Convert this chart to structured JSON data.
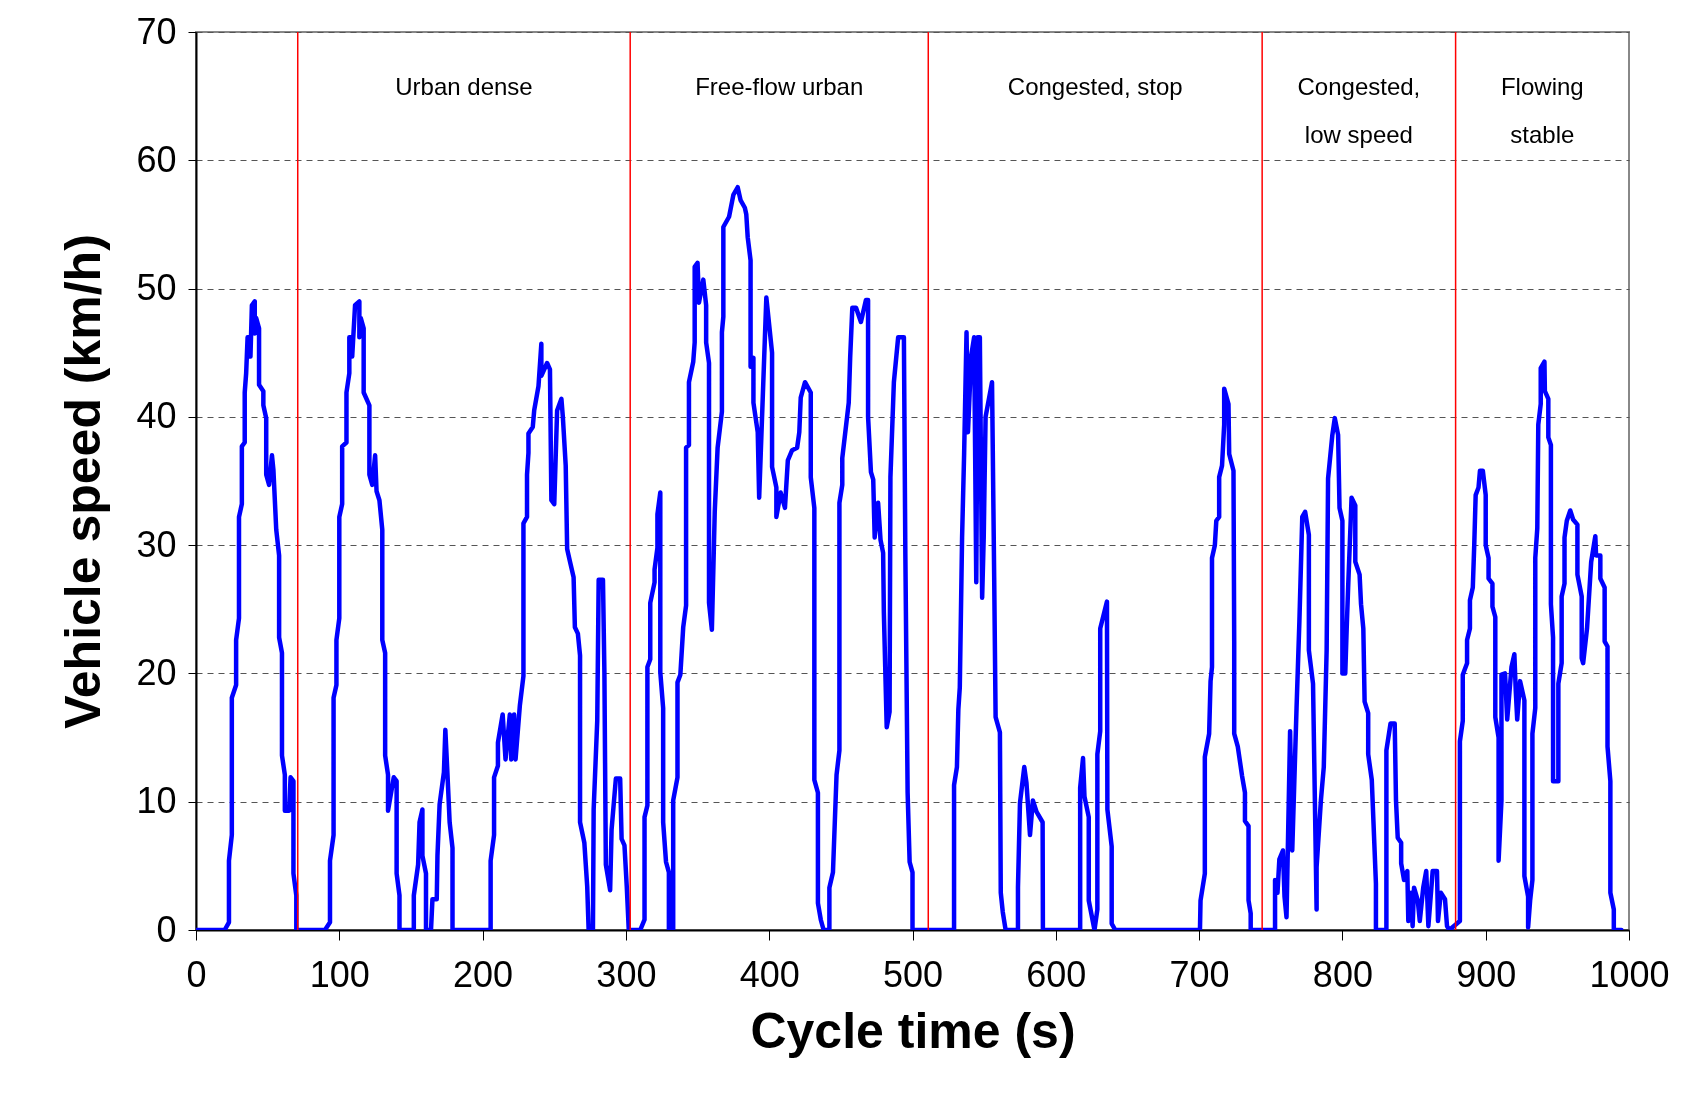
{
  "chart_data": {
    "type": "line",
    "xlabel": "Cycle time (s)",
    "ylabel": "Vehicle speed (km/h)",
    "xlim": [
      0,
      1000
    ],
    "xticks": [
      0,
      100,
      200,
      300,
      400,
      500,
      600,
      700,
      800,
      900,
      1000
    ],
    "ylim": [
      0,
      70
    ],
    "yticks": [
      0,
      10,
      20,
      30,
      40,
      50,
      60,
      70
    ],
    "grid": "y",
    "line_style": "solid",
    "series": [
      {
        "color": "#0000ff",
        "x": [
          0,
          20,
          23,
          23,
          25,
          25,
          28,
          28,
          30,
          30,
          32,
          32,
          34,
          34,
          35,
          36,
          37,
          38,
          39,
          41,
          41,
          42,
          44,
          44,
          47,
          47,
          49,
          49,
          51,
          53,
          54,
          56,
          58,
          58,
          60,
          60,
          62,
          62,
          65,
          66,
          68,
          68,
          70,
          70,
          90,
          93.5,
          93.5,
          96,
          96,
          98,
          98,
          100,
          100,
          102,
          102,
          105,
          105,
          107,
          107,
          109,
          109,
          111,
          114,
          114,
          115,
          117,
          117,
          121,
          121,
          123,
          125,
          126,
          128,
          130,
          130,
          132,
          132,
          134,
          134,
          138,
          140,
          140,
          142,
          142,
          152,
          152,
          155,
          156,
          158,
          158,
          160.5,
          160.5,
          164,
          165,
          168,
          168.5,
          170,
          173,
          174,
          175.5,
          177,
          179,
          179,
          205.6,
          205.6,
          208,
          208,
          210.7,
          210.7,
          214,
          216,
          219,
          220,
          222,
          223,
          226,
          228.5,
          228.5,
          231,
          231,
          232,
          232,
          235,
          236,
          239,
          241,
          241,
          245,
          247,
          248,
          250,
          252,
          255,
          256,
          258,
          259,
          261,
          263.5,
          264.4,
          266.5,
          268,
          268,
          271,
          273,
          274,
          277,
          277.5,
          280,
          281,
          284,
          285,
          286,
          289,
          290,
          293,
          296,
          297,
          299,
          300.6,
          302,
          310,
          313,
          313,
          315,
          315,
          317,
          317,
          320,
          320,
          322,
          322,
          324,
          324,
          326,
          326,
          328,
          330,
          330,
          333,
          333,
          336,
          336,
          338,
          340,
          342,
          342,
          344,
          344,
          347,
          348,
          348,
          350,
          351,
          354,
          356,
          356,
          358,
          358,
          360,
          362,
          364,
          367,
          367,
          368,
          368,
          372,
          375,
          378,
          380,
          383,
          384,
          385,
          387,
          387,
          389,
          389,
          392,
          393,
          398,
          402,
          402,
          405,
          405,
          408,
          411,
          413,
          416,
          419.5,
          421,
          422,
          425,
          429,
          429,
          431.5,
          431.5,
          434,
          434,
          436,
          438,
          442,
          442,
          444.5,
          447,
          449,
          449,
          451,
          451,
          455.5,
          456.5,
          458,
          460.6,
          464,
          467.5,
          469,
          469,
          471,
          472.6,
          473.6,
          476,
          477.7,
          479.5,
          480,
          482,
          484,
          484.6,
          487,
          490,
          494,
          495,
          496.6,
          498,
          500,
          500,
          529,
          529,
          531,
          532,
          533,
          534.6,
          536,
          537.7,
          538.7,
          541,
          543,
          544.5,
          545.5,
          547,
          548.6,
          549.7,
          551,
          555.5,
          557,
          558,
          561,
          561.6,
          563,
          565,
          573.6,
          573.6,
          575,
          578,
          579.5,
          582,
          584,
          586.6,
          590.8,
          591,
          617,
          617,
          619,
          620,
          623,
          623,
          627,
          629,
          629,
          631,
          631,
          635.7,
          636,
          639,
          639,
          641.5,
          700.6,
          701,
          704,
          704,
          707,
          708,
          709,
          709,
          711,
          712,
          714,
          714,
          716,
          717.5,
          717.5,
          720.5,
          721,
          724,
          724.5,
          724.5,
          727,
          730,
          732,
          732,
          734.5,
          734.5,
          736,
          736,
          753,
          753,
          754.7,
          756,
          758.5,
          759.6,
          761,
          763.5,
          765,
          768,
          770,
          772,
          774,
          776.6,
          776.6,
          779.5,
          782,
          782,
          785,
          787,
          789,
          790,
          793,
          794.7,
          797,
          798,
          800,
          800,
          802,
          803,
          804,
          806.4,
          809,
          809,
          812,
          813,
          814.6,
          815.5,
          818,
          818,
          820.5,
          823.4,
          823.4,
          830.7,
          830.7,
          833.6,
          836.5,
          837.4,
          838.6,
          841,
          841,
          843,
          845.3,
          846,
          848,
          849,
          850,
          852.6,
          854,
          856.4,
          858.5,
          860,
          863,
          866,
          866.7,
          868.7,
          871.6,
          873,
          874.6,
          882,
          882,
          884,
          884,
          887,
          887,
          889,
          889,
          891,
          892,
          893,
          895,
          896,
          898,
          900,
          900,
          902,
          902,
          904.7,
          904.7,
          906.7,
          906.7,
          909,
          909,
          911,
          911,
          913.5,
          915,
          918,
          920,
          921,
          922,
          924,
          927,
          927,
          929.6,
          929.6,
          931,
          932.6,
          932.6,
          934.6,
          934.6,
          936,
          936.7,
          938.4,
          938.4,
          941,
          941.3,
          943.7,
          943.7,
          945.5,
          945.5,
          947,
          947,
          950.7,
          950.7,
          953,
          953,
          955,
          955,
          956.6,
          959,
          961,
          964,
          964,
          967,
          967,
          968,
          970.7,
          973.6,
          976.5,
          977,
          980,
          980,
          983,
          983,
          985,
          985,
          987,
          987,
          989.4,
          989.4,
          994.7
        ],
        "values": [
          0,
          0,
          0.6,
          5.4,
          7.4,
          18.1,
          19.1,
          22.6,
          24.3,
          32.2,
          33.2,
          37.7,
          38,
          41.9,
          43.4,
          46.2,
          46.2,
          44.7,
          48.7,
          49,
          46.5,
          47.7,
          46.9,
          42.5,
          42,
          40.9,
          39.9,
          35.5,
          34.7,
          37,
          35.9,
          31.2,
          29.2,
          22.8,
          21.6,
          13.6,
          12.1,
          9.3,
          9.3,
          11.9,
          11.6,
          4.4,
          2.7,
          0,
          0,
          0.6,
          5.4,
          7.4,
          18.1,
          19.1,
          22.6,
          24.3,
          32.2,
          33.2,
          37.7,
          38,
          41.9,
          43.4,
          46.2,
          46.2,
          44.7,
          48.7,
          49,
          46.2,
          47.7,
          46.9,
          41.9,
          40.9,
          35.5,
          34.7,
          37,
          34.2,
          33.5,
          31.2,
          22.6,
          21.6,
          13.6,
          12.1,
          9.3,
          11.9,
          11.6,
          4.4,
          2.7,
          0,
          0,
          2.7,
          5.1,
          8.4,
          9.4,
          5.8,
          4.4,
          0,
          0,
          2.4,
          2.4,
          5.8,
          9.8,
          12.3,
          15.6,
          12.1,
          8.4,
          6.4,
          0,
          0,
          5.4,
          7.4,
          11.9,
          12.8,
          14.6,
          16.8,
          13.3,
          16.8,
          13.3,
          16.8,
          13.3,
          17.5,
          19.8,
          31.7,
          32.2,
          35.5,
          37.2,
          38.7,
          39.2,
          40.5,
          42.4,
          45.7,
          43.2,
          44.2,
          43.7,
          33.5,
          33.2,
          40.5,
          41.4,
          40,
          36.2,
          29.7,
          28.7,
          27.5,
          23.6,
          23.1,
          21.4,
          8.4,
          6.8,
          3.4,
          0,
          0,
          9.4,
          16.3,
          27.3,
          27.3,
          20.1,
          5.1,
          3.1,
          7.8,
          11.8,
          11.8,
          7.1,
          6.6,
          3.4,
          0,
          0,
          0.8,
          8.8,
          9.7,
          20.5,
          21.1,
          25.5,
          27.1,
          28.1,
          29.8,
          32.4,
          34.1,
          20.1,
          17.3,
          8.4,
          5.3,
          4.5,
          0,
          0,
          10.1,
          11.9,
          19.3,
          19.9,
          23.6,
          25.3,
          37.6,
          37.8,
          42.7,
          44.3,
          45.8,
          51.7,
          52,
          48.9,
          50.7,
          48.7,
          45.8,
          44.2,
          25.5,
          23.4,
          32.6,
          37.6,
          40.4,
          46.6,
          47.8,
          54.8,
          55.6,
          57.3,
          57.9,
          56.9,
          56.3,
          55.8,
          54,
          52.2,
          43.9,
          44.6,
          41.1,
          38.8,
          33.7,
          49.3,
          45,
          36.1,
          34.5,
          32.2,
          34.1,
          32.9,
          36.6,
          37.4,
          37.6,
          38.8,
          41.5,
          42.7,
          41.9,
          35.3,
          32.9,
          11.7,
          10.7,
          2.1,
          0.8,
          0,
          0,
          3.3,
          4.5,
          12.1,
          14,
          33.3,
          34.7,
          36.8,
          41.1,
          44.6,
          48.5,
          48.5,
          47.4,
          49.1,
          49.1,
          40,
          35.7,
          35.1,
          30.6,
          33.3,
          30.4,
          29.4,
          24.8,
          15.8,
          17,
          35.3,
          42.7,
          46.2,
          46.2,
          29.4,
          10.7,
          5.3,
          4.5,
          0,
          0,
          11.3,
          12.7,
          17.2,
          18.9,
          30.6,
          37,
          46.6,
          38.8,
          44.8,
          46.2,
          27.1,
          46.2,
          46.2,
          25.9,
          30.6,
          40,
          42.7,
          27.5,
          16.6,
          15.4,
          2.9,
          1.4,
          0,
          0,
          3.3,
          9.9,
          12.7,
          11.5,
          7.4,
          10.1,
          9.2,
          8.4,
          0,
          0,
          11.1,
          13.4,
          10.4,
          8.8,
          2.3,
          0,
          1.6,
          13.7,
          15.5,
          23.5,
          25.6,
          9.4,
          6.5,
          0.5,
          0,
          0,
          2.3,
          4.4,
          13.5,
          15.3,
          19.4,
          20.5,
          29,
          30,
          31.9,
          32.2,
          35.3,
          36.2,
          39.4,
          42.2,
          41,
          37.1,
          35.8,
          22.5,
          15.3,
          14.3,
          12,
          10.7,
          8.5,
          8.1,
          2.3,
          1.3,
          0,
          0,
          3.9,
          2.9,
          5.5,
          6.2,
          2.6,
          1,
          15.5,
          6.2,
          17.3,
          24.1,
          32.2,
          32.6,
          30.8,
          21.8,
          19.2,
          1.6,
          4.9,
          10.1,
          12.7,
          21.8,
          35.2,
          38.6,
          39.9,
          38.6,
          32.9,
          31.9,
          20,
          20,
          23.5,
          26.7,
          33.7,
          33.1,
          28.7,
          27.7,
          25.4,
          23.5,
          17.8,
          16.9,
          13.7,
          11.7,
          3.6,
          0,
          0,
          14,
          16.1,
          16.1,
          10.1,
          7.2,
          6.8,
          5.2,
          3.9,
          4.6,
          0.7,
          2.9,
          0.3,
          3.3,
          2.3,
          0.7,
          3.3,
          4.6,
          0.3,
          4.6,
          4.6,
          0.7,
          2.9,
          2.4,
          0.3,
          0,
          0.7,
          14.7,
          16.3,
          19.9,
          20.8,
          22.6,
          23.5,
          25.7,
          26.7,
          30,
          33.9,
          34.5,
          35.8,
          35.8,
          33.9,
          30,
          29,
          27.4,
          27,
          25.2,
          24.4,
          16.6,
          15,
          5.4,
          10.1,
          19.9,
          20,
          16.4,
          20.5,
          21.5,
          18.6,
          16.4,
          19.4,
          17.9,
          4.2,
          2.6,
          0.2,
          2.3,
          3.9,
          15.3,
          17.3,
          29,
          31.3,
          39.4,
          41,
          43.8,
          44.3,
          42,
          41.4,
          38.4,
          37.8,
          25.4,
          22.8,
          11.6,
          11.6,
          19.2,
          20.8,
          26,
          27,
          30.6,
          31.9,
          32.7,
          32,
          31.6,
          27.7,
          26,
          21.2,
          20.8,
          23.5,
          28.7,
          30.7,
          29.2,
          29.2,
          27.4,
          26.7,
          22.5,
          22.1,
          14.3,
          11.6,
          2.9,
          1.6,
          0,
          0
        ]
      }
    ],
    "ref_lines": [
      {
        "axis": "x",
        "value": 71,
        "color": "#ff0000"
      },
      {
        "axis": "x",
        "value": 303,
        "color": "#ff0000"
      },
      {
        "axis": "x",
        "value": 511,
        "color": "#ff0000"
      },
      {
        "axis": "x",
        "value": 744,
        "color": "#ff0000"
      },
      {
        "axis": "x",
        "value": 879,
        "color": "#ff0000"
      }
    ],
    "annotations": [
      "Urban dense",
      "Free-flow urban",
      "Congested, stop",
      "Congested,\nlow speed",
      "Flowing\nstable"
    ]
  }
}
